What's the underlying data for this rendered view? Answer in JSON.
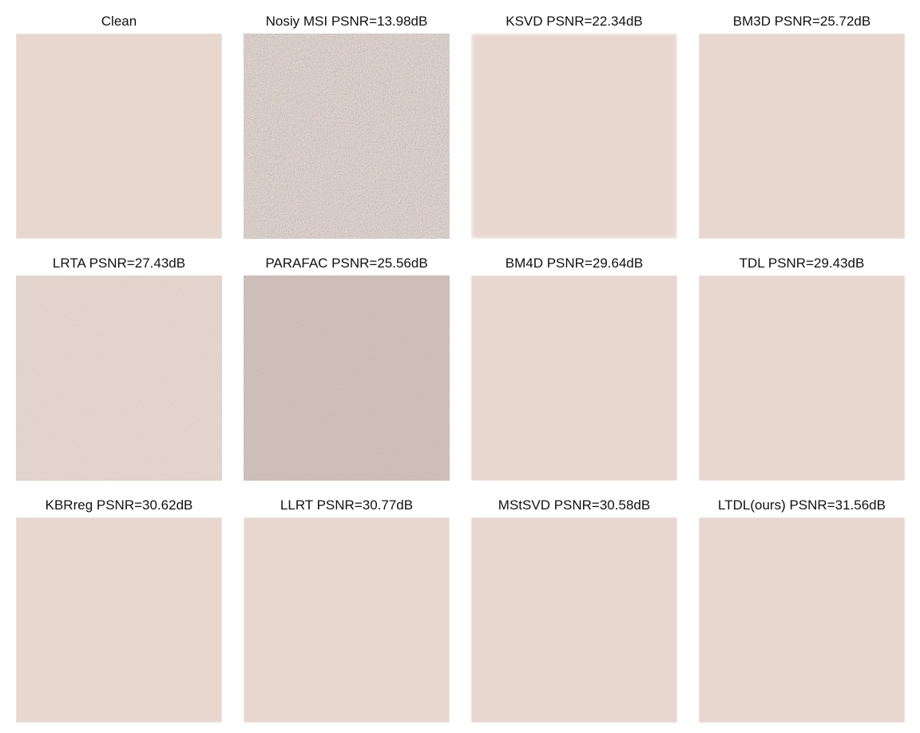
{
  "panels": [
    {
      "caption": "Clean",
      "variant": "clean"
    },
    {
      "caption": "Nosiy MSI PSNR=13.98dB",
      "variant": "noisy"
    },
    {
      "caption": "KSVD PSNR=22.34dB",
      "variant": "blurry"
    },
    {
      "caption": "BM3D PSNR=25.72dB",
      "variant": "smooth"
    },
    {
      "caption": "LRTA PSNR=27.43dB",
      "variant": "grainy"
    },
    {
      "caption": "PARAFAC PSNR=25.56dB",
      "variant": "grainy-dark"
    },
    {
      "caption": "BM4D PSNR=29.64dB",
      "variant": "smooth"
    },
    {
      "caption": "TDL PSNR=29.43dB",
      "variant": "clean"
    },
    {
      "caption": "KBRreg PSNR=30.62dB",
      "variant": "smooth"
    },
    {
      "caption": "LLRT PSNR=30.77dB",
      "variant": "smooth"
    },
    {
      "caption": "MStSVD PSNR=30.58dB",
      "variant": "smooth"
    },
    {
      "caption": "LTDL(ours) PSNR=31.56dB",
      "variant": "clean"
    }
  ],
  "colors": {
    "sky": "#d9e4e0",
    "hill": "#9b8f86",
    "roof": "#cf4a3c",
    "foliage": "#7c9a62",
    "wall": "#e6c9c2"
  }
}
